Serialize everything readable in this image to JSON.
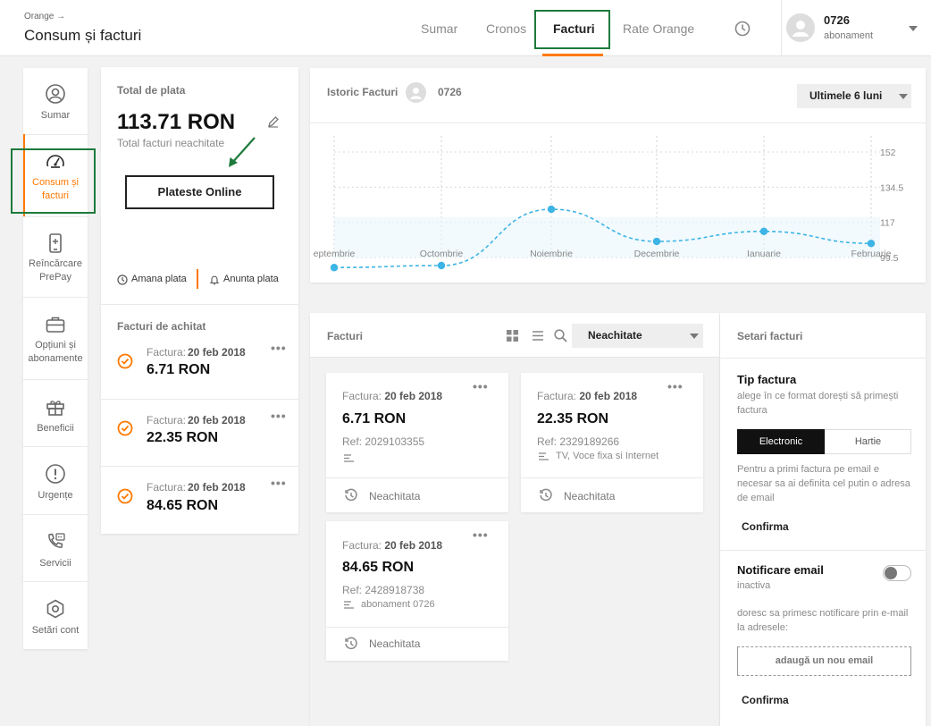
{
  "header": {
    "crumb": "Orange →",
    "title": "Consum și facturi",
    "tabs": [
      {
        "label": "Sumar"
      },
      {
        "label": "Cronos"
      },
      {
        "label": "Facturi"
      },
      {
        "label": "Rate Orange"
      }
    ],
    "user": {
      "name": "0726",
      "subtitle": "abonament"
    }
  },
  "sidebar": {
    "items": [
      {
        "label": "Sumar",
        "icon": "user-circle-icon"
      },
      {
        "label": "Consum și facturi",
        "icon": "gauge-icon"
      },
      {
        "label": "Reîncărcare PrePay",
        "icon": "phone-recharge-icon"
      },
      {
        "label": "Opțiuni și abonamente",
        "icon": "briefcase-icon"
      },
      {
        "label": "Beneficii",
        "icon": "gift-icon"
      },
      {
        "label": "Urgențe",
        "icon": "alert-icon"
      },
      {
        "label": "Servicii",
        "icon": "phone-service-icon"
      },
      {
        "label": "Setări cont",
        "icon": "settings-icon"
      }
    ]
  },
  "total": {
    "heading": "Total de plata",
    "amount": "113.71 RON",
    "subtitle": "Total facturi neachitate",
    "pay_button": "Plateste Online",
    "postpone": "Amana plata",
    "notify": "Anunta plata"
  },
  "to_pay": {
    "heading": "Facturi de achitat",
    "items": [
      {
        "prefix": "Factura:",
        "date": "20 feb 2018",
        "amount": "6.71 RON"
      },
      {
        "prefix": "Factura:",
        "date": "20 feb 2018",
        "amount": "22.35 RON"
      },
      {
        "prefix": "Factura:",
        "date": "20 feb 2018",
        "amount": "84.65 RON"
      }
    ]
  },
  "history": {
    "heading": "Istoric Facturi",
    "user": "0726",
    "period": "Ultimele 6 luni"
  },
  "chart_data": {
    "type": "line",
    "categories": [
      "Septembrie",
      "Octombrie",
      "Noiembrie",
      "Decembrie",
      "Ianuarie",
      "Februarie"
    ],
    "category_labels": [
      "eptembrie",
      "Octombrie",
      "Noiembrie",
      "Decembrie",
      "Ianuarie",
      "Februarie"
    ],
    "values": [
      94.5,
      95.5,
      123.5,
      107.5,
      112.5,
      106.5
    ],
    "ylim": [
      99.5,
      160
    ],
    "yticks": [
      "152",
      "134.5",
      "117",
      "99.5"
    ],
    "series_color": "#3db4e5"
  },
  "invoices": {
    "heading": "Facturi",
    "filter": "Neachitate",
    "cards": [
      {
        "prefix": "Factura:",
        "date": "20 feb 2018",
        "amount": "6.71 RON",
        "ref": "Ref: 2029103355",
        "desc": "",
        "status": "Neachitata"
      },
      {
        "prefix": "Factura:",
        "date": "20 feb 2018",
        "amount": "22.35 RON",
        "ref": "Ref: 2329189266",
        "desc": "TV, Voce fixa si Internet",
        "status": "Neachitata"
      },
      {
        "prefix": "Factura:",
        "date": "20 feb 2018",
        "amount": "84.65 RON",
        "ref": "Ref: 2428918738",
        "desc": "abonament 0726",
        "status": "Neachitata"
      }
    ]
  },
  "settings": {
    "heading": "Setari facturi",
    "type_title": "Tip factura",
    "type_desc": "alege în ce format dorești să primești factura",
    "option_electronic": "Electronic",
    "option_paper": "Hartie",
    "email_note": "Pentru a primi factura pe email e necesar sa ai definita cel putin o adresa de email",
    "confirm1": "Confirma",
    "notify_title": "Notificare email",
    "notify_state": "inactiva",
    "notify_desc": "doresc sa primesc notificare prin e-mail la adresele:",
    "add_email": "adaugă un nou email",
    "confirm2": "Confirma"
  },
  "colors": {
    "accent": "#ff7900",
    "highlight": "#1e7a3c",
    "chart": "#3db4e5"
  }
}
